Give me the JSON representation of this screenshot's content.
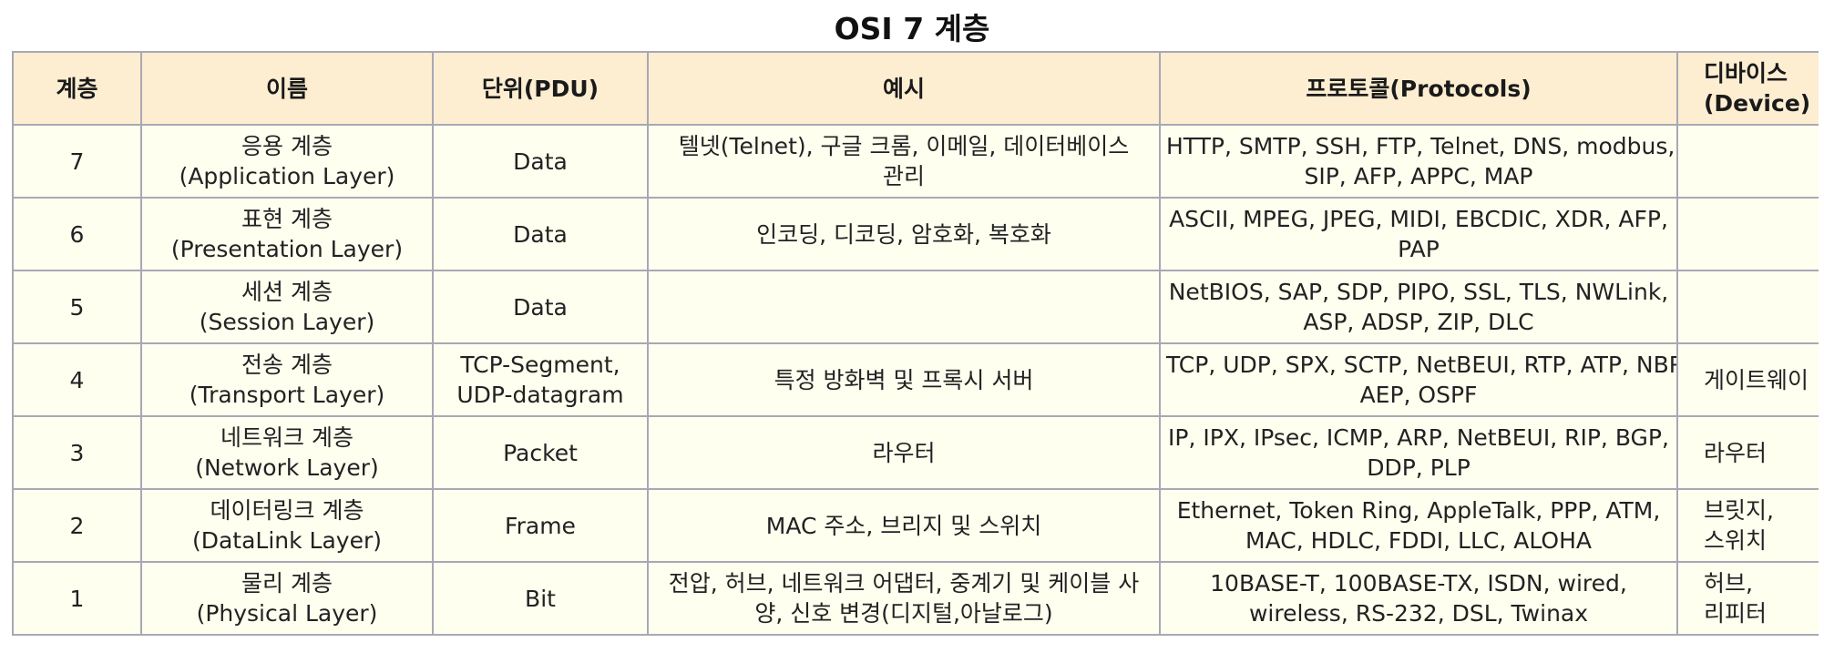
{
  "title": "OSI 7 계층",
  "headers": {
    "layer": "계층",
    "name": "이름",
    "pdu": "단위(PDU)",
    "example": "예시",
    "protocols": "프로토콜(Protocols)",
    "device_line1": "디바이스",
    "device_line2": "(Device)"
  },
  "rows": [
    {
      "layer": "7",
      "name_ko": "응용 계층",
      "name_en": "(Application Layer)",
      "pdu_line1": "Data",
      "pdu_line2": "",
      "example_line1": "텔넷(Telnet), 구글 크롬, 이메일, 데이터베이스",
      "example_line2": "관리",
      "protocols_line1": "HTTP, SMTP, SSH, FTP, Telnet, DNS, modbus,",
      "protocols_line2": "SIP, AFP, APPC, MAP",
      "device_line1": "",
      "device_line2": ""
    },
    {
      "layer": "6",
      "name_ko": "표현 계층",
      "name_en": "(Presentation Layer)",
      "pdu_line1": "Data",
      "pdu_line2": "",
      "example_line1": "인코딩, 디코딩, 암호화, 복호화",
      "example_line2": "",
      "protocols_line1": "ASCII, MPEG, JPEG, MIDI, EBCDIC, XDR, AFP,",
      "protocols_line2": "PAP",
      "device_line1": "",
      "device_line2": ""
    },
    {
      "layer": "5",
      "name_ko": "세션 계층",
      "name_en": "(Session Layer)",
      "pdu_line1": "Data",
      "pdu_line2": "",
      "example_line1": "",
      "example_line2": "",
      "protocols_line1": "NetBIOS, SAP, SDP, PIPO, SSL, TLS, NWLink,",
      "protocols_line2": "ASP, ADSP, ZIP, DLC",
      "device_line1": "",
      "device_line2": ""
    },
    {
      "layer": "4",
      "name_ko": "전송 계층",
      "name_en": "(Transport Layer)",
      "pdu_line1": "TCP-Segment,",
      "pdu_line2": "UDP-datagram",
      "example_line1": "특정 방화벽 및 프록시 서버",
      "example_line2": "",
      "protocols_line1": "TCP, UDP, SPX, SCTP, NetBEUI, RTP, ATP, NBP,",
      "protocols_line2": "AEP, OSPF",
      "device_line1": "게이트웨이",
      "device_line2": ""
    },
    {
      "layer": "3",
      "name_ko": "네트워크 계층",
      "name_en": "(Network Layer)",
      "pdu_line1": "Packet",
      "pdu_line2": "",
      "example_line1": "라우터",
      "example_line2": "",
      "protocols_line1": "IP, IPX, IPsec, ICMP, ARP, NetBEUI, RIP, BGP,",
      "protocols_line2": "DDP, PLP",
      "device_line1": "라우터",
      "device_line2": ""
    },
    {
      "layer": "2",
      "name_ko": "데이터링크 계층",
      "name_en": "(DataLink Layer)",
      "pdu_line1": "Frame",
      "pdu_line2": "",
      "example_line1": "MAC 주소, 브리지 및 스위치",
      "example_line2": "",
      "protocols_line1": "Ethernet, Token Ring, AppleTalk, PPP, ATM,",
      "protocols_line2": "MAC, HDLC, FDDI, LLC, ALOHA",
      "device_line1": "브릿지,",
      "device_line2": "스위치"
    },
    {
      "layer": "1",
      "name_ko": "물리 계층",
      "name_en": "(Physical Layer)",
      "pdu_line1": "Bit",
      "pdu_line2": "",
      "example_line1": "전압, 허브, 네트워크 어댑터, 중계기 및 케이블 사",
      "example_line2": "양, 신호 변경(디지털,아날로그)",
      "protocols_line1": "10BASE-T, 100BASE-TX, ISDN, wired,",
      "protocols_line2": "wireless, RS-232, DSL, Twinax",
      "device_line1": "허브,",
      "device_line2": "리피터"
    }
  ],
  "colors": {
    "header_bg": "#fdeed2",
    "cell_bg": "#fffff0",
    "border": "#a8a8b4"
  }
}
